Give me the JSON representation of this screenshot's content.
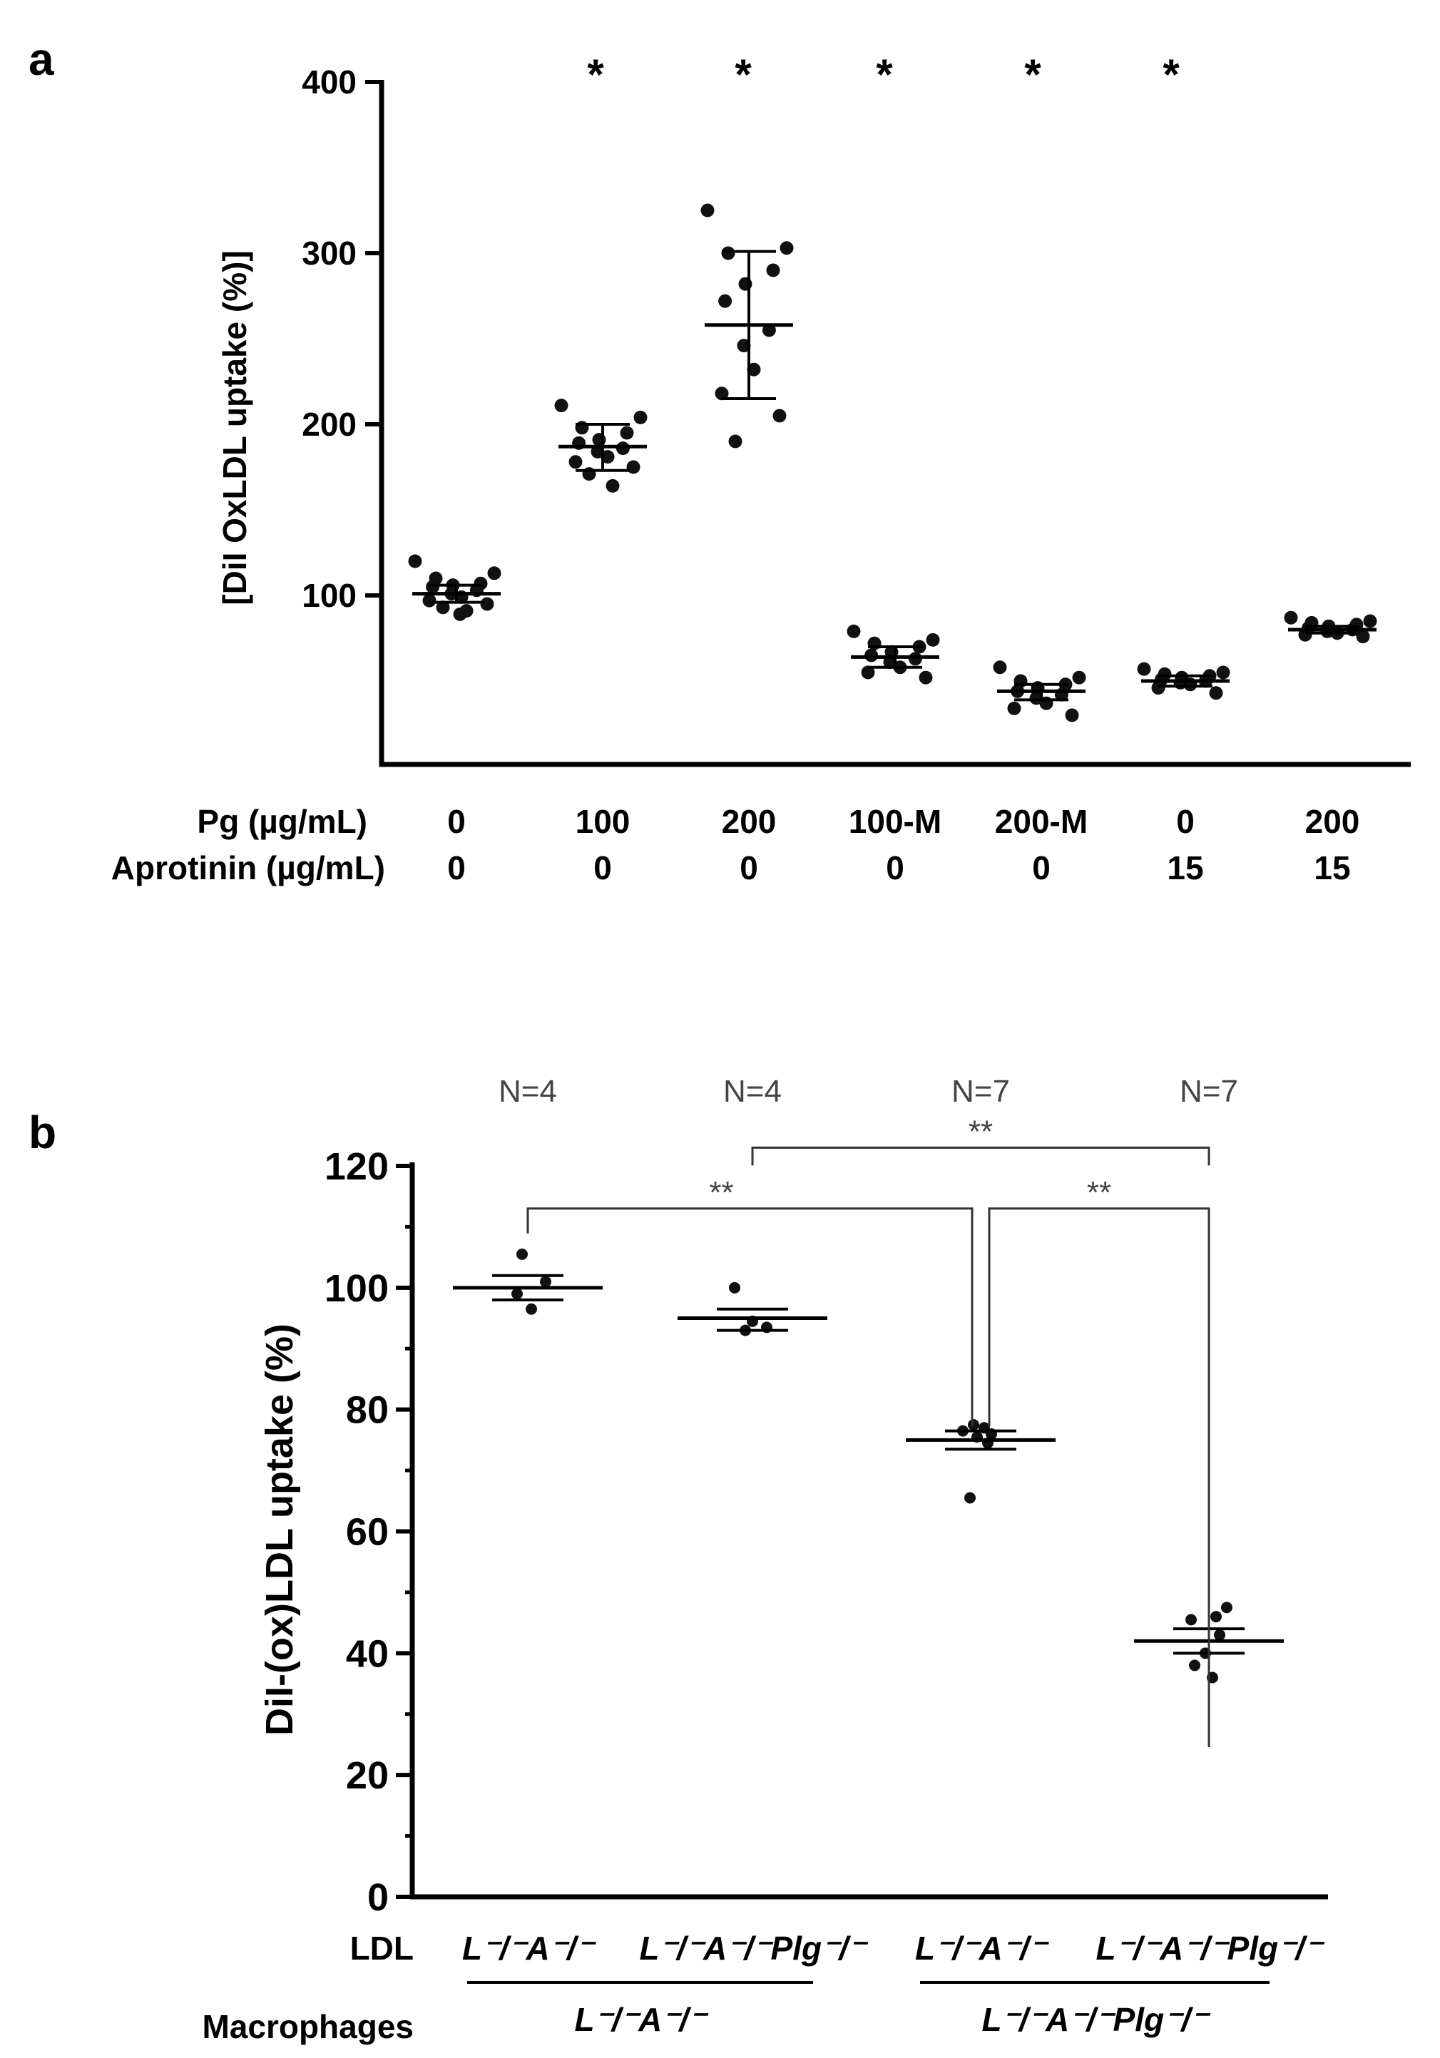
{
  "chart_data": [
    {
      "type": "scatter",
      "panel_label": "a",
      "title": "",
      "ylabel": "[DiI OxLDL uptake (%)]",
      "ylim": [
        0,
        400
      ],
      "yticks": [
        "100",
        "200",
        "300",
        "400"
      ],
      "row_labels": [
        "Pg (µg/mL)",
        "Aprotinin (µg/mL)"
      ],
      "categories": [
        {
          "pg": "0",
          "aprotinin": "0",
          "mean": 101,
          "err": [
            96,
            106
          ],
          "star": "",
          "points": [
            120,
            113,
            110,
            107,
            106,
            105,
            103,
            101,
            99,
            97,
            95,
            93,
            91,
            89
          ]
        },
        {
          "pg": "100",
          "aprotinin": "0",
          "mean": 187,
          "err": [
            173,
            200
          ],
          "star": "*",
          "points": [
            211,
            204,
            198,
            195,
            191,
            189,
            186,
            184,
            181,
            178,
            175,
            171,
            164
          ]
        },
        {
          "pg": "200",
          "aprotinin": "0",
          "mean": 258,
          "err": [
            215,
            301
          ],
          "star": "*",
          "points": [
            325,
            303,
            300,
            290,
            282,
            272,
            255,
            246,
            232,
            218,
            205,
            190
          ]
        },
        {
          "pg": "100-M",
          "aprotinin": "0",
          "mean": 64,
          "err": [
            58,
            70
          ],
          "star": "*",
          "points": [
            79,
            74,
            72,
            70,
            67,
            65,
            63,
            61,
            58,
            55,
            52
          ]
        },
        {
          "pg": "200-M",
          "aprotinin": "0",
          "mean": 44,
          "err": [
            39,
            48
          ],
          "star": "*",
          "points": [
            58,
            52,
            50,
            48,
            46,
            44,
            42,
            40,
            37,
            34,
            30
          ]
        },
        {
          "pg": "0",
          "aprotinin": "15",
          "mean": 50,
          "err": [
            47,
            53
          ],
          "star": "*",
          "points": [
            57,
            55,
            54,
            53,
            52,
            51,
            50,
            49,
            48,
            46,
            43
          ]
        },
        {
          "pg": "200",
          "aprotinin": "15",
          "mean": 80,
          "err": [
            78,
            82
          ],
          "star": "",
          "points": [
            87,
            85,
            84,
            83,
            82,
            81,
            80,
            79,
            78,
            77,
            76
          ]
        }
      ]
    },
    {
      "type": "scatter",
      "panel_label": "b",
      "title": "",
      "ylabel": "DiI-(ox)LDL uptake (%)",
      "ylim": [
        0,
        120
      ],
      "yticks": [
        "0",
        "20",
        "40",
        "60",
        "80",
        "100",
        "120"
      ],
      "ldl_row_label": "LDL",
      "macrophage_row_label": "Macrophages",
      "groups": [
        {
          "ldl": "L⁻/⁻A⁻/⁻",
          "n": "N=4",
          "mean": 100,
          "err": [
            98,
            102
          ],
          "points": [
            105.5,
            101,
            99,
            96.5
          ]
        },
        {
          "ldl": "L⁻/⁻A⁻/⁻Plg⁻/⁻",
          "n": "N=4",
          "mean": 95,
          "err": [
            93,
            96.5
          ],
          "points": [
            100,
            94.5,
            93.5,
            93
          ]
        },
        {
          "ldl": "L⁻/⁻A⁻/⁻",
          "n": "N=7",
          "mean": 75,
          "err": [
            73.5,
            76.5
          ],
          "points": [
            77.5,
            77,
            76.5,
            76,
            75.5,
            74.5,
            65.5
          ]
        },
        {
          "ldl": "L⁻/⁻A⁻/⁻Plg⁻/⁻",
          "n": "N=7",
          "mean": 42,
          "err": [
            40,
            44
          ],
          "points": [
            47.5,
            46,
            45.5,
            43,
            40,
            38,
            36
          ]
        }
      ],
      "macrophages": [
        {
          "label": "L⁻/⁻A⁻/⁻",
          "groups": [
            0,
            1
          ]
        },
        {
          "label": "L⁻/⁻A⁻/⁻Plg⁻/⁻",
          "groups": [
            2,
            3
          ]
        }
      ],
      "brackets": [
        {
          "from": 1,
          "to": 3,
          "label": "**",
          "y": 123
        },
        {
          "from": 0,
          "to": 2,
          "label": "**",
          "y": 113
        },
        {
          "from": 2,
          "to": 3,
          "label": "**",
          "y": 113
        }
      ]
    }
  ]
}
